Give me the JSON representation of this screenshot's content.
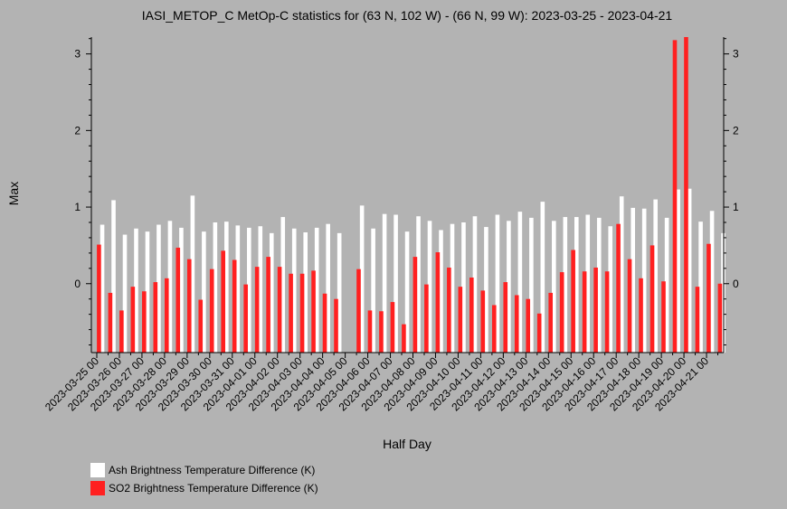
{
  "chart_data": {
    "type": "bar",
    "title": "IASI_METOP_C MetOp-C statistics for (63 N, 102 W) - (66 N, 99 W): 2023-03-25 - 2023-04-21",
    "xlabel": "Half Day",
    "ylabel": "Max",
    "ylim": [
      -0.9,
      3.22
    ],
    "yticks": [
      0,
      1,
      2,
      3
    ],
    "xticklabels": [
      "2023-03-25 00",
      "2023-03-26 00",
      "2023-03-27 00",
      "2023-03-28 00",
      "2023-03-29 00",
      "2023-03-30 00",
      "2023-03-31 00",
      "2023-04-01 00",
      "2023-04-02 00",
      "2023-04-03 00",
      "2023-04-04 00",
      "2023-04-05 00",
      "2023-04-06 00",
      "2023-04-07 00",
      "2023-04-08 00",
      "2023-04-09 00",
      "2023-04-10 00",
      "2023-04-11 00",
      "2023-04-12 00",
      "2023-04-13 00",
      "2023-04-14 00",
      "2023-04-15 00",
      "2023-04-16 00",
      "2023-04-17 00",
      "2023-04-18 00",
      "2023-04-19 00",
      "2023-04-20 00",
      "2023-04-21 00"
    ],
    "series": [
      {
        "name": "Ash Brightness Temperature Difference (K)",
        "color": "#ffffff",
        "values": [
          0.77,
          1.09,
          0.64,
          0.72,
          0.68,
          0.77,
          0.82,
          0.73,
          1.15,
          0.68,
          0.8,
          0.81,
          0.76,
          0.73,
          0.75,
          0.66,
          0.87,
          0.72,
          0.67,
          0.73,
          0.78,
          0.66,
          null,
          1.02,
          0.72,
          0.91,
          0.9,
          0.68,
          0.88,
          0.82,
          0.7,
          0.78,
          0.8,
          0.88,
          0.74,
          0.9,
          0.82,
          0.94,
          0.86,
          1.07,
          0.82,
          0.87,
          0.87,
          0.9,
          0.86,
          0.75,
          1.14,
          0.99,
          0.98,
          1.1,
          0.86,
          1.23,
          1.24,
          0.81,
          0.95,
          0.66
        ]
      },
      {
        "name": "SO2 Brightness Temperature Difference (K)",
        "color": "#ff2020",
        "values": [
          0.51,
          -0.12,
          -0.35,
          -0.04,
          -0.1,
          0.02,
          0.07,
          0.47,
          0.32,
          -0.21,
          0.19,
          0.43,
          0.31,
          -0.01,
          0.22,
          0.35,
          0.22,
          0.13,
          0.13,
          0.17,
          -0.13,
          -0.2,
          null,
          0.19,
          -0.35,
          -0.36,
          -0.24,
          -0.53,
          0.35,
          -0.01,
          0.41,
          0.21,
          -0.04,
          0.08,
          -0.09,
          -0.28,
          0.02,
          -0.15,
          -0.2,
          -0.39,
          -0.12,
          0.15,
          0.44,
          0.16,
          0.21,
          0.16,
          0.78,
          0.32,
          0.07,
          0.5,
          0.03,
          3.18,
          3.22,
          -0.04,
          0.52,
          0.0
        ]
      }
    ],
    "legend_placement": "bottom-left",
    "grid": false
  }
}
